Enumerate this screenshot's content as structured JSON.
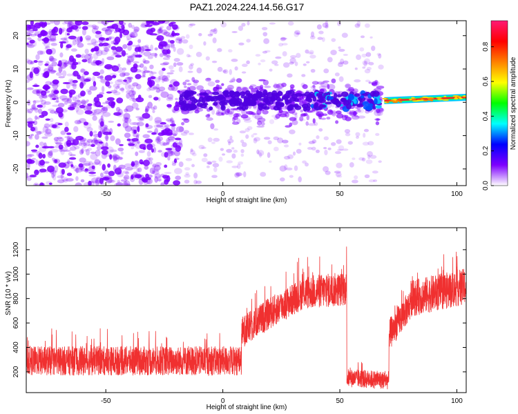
{
  "title": "PAZ1.2024.224.14.56.G17",
  "colors": {
    "snr_line": "#f03030",
    "spectro_base": "#7d00ff",
    "colormap": [
      "#ffffff",
      "#7d00ff",
      "#0000ff",
      "#00ffff",
      "#00ff00",
      "#ffff00",
      "#ff8000",
      "#ff0000",
      "#ff1a75"
    ]
  },
  "chart_data": [
    {
      "type": "heatmap",
      "title": "PAZ1.2024.224.14.56.G17",
      "xlabel": "Height of straight line (km)",
      "ylabel": "Frequency (Hz)",
      "xlim": [
        -84,
        104
      ],
      "ylim": [
        -25,
        24.5
      ],
      "xticks": [
        -50,
        0,
        50,
        100
      ],
      "xtick_labels": [
        "-50",
        "0",
        "50",
        "100"
      ],
      "yticks": [
        -20,
        -10,
        0,
        10,
        20
      ],
      "ytick_labels": [
        "-20",
        "-10",
        "0",
        "10",
        "20"
      ],
      "colorbar": {
        "label": "Normalized spectral amplitude",
        "range": [
          0,
          0.95
        ],
        "ticks": [
          0.0,
          0.2,
          0.4,
          0.6,
          0.8
        ],
        "tick_labels": [
          "0.0",
          "0.2",
          "0.4",
          "0.6",
          "0.8"
        ]
      },
      "features": [
        {
          "name": "scattered noise",
          "x_range": [
            -84,
            -18
          ],
          "freq_range": [
            -25,
            24.5
          ],
          "amplitude": 0.15
        },
        {
          "name": "noise band",
          "x_range": [
            -18,
            68
          ],
          "freq_range": [
            -8,
            8
          ],
          "amplitude": 0.1
        },
        {
          "name": "signal core",
          "x_range": [
            -18,
            68
          ],
          "freq": 0.5,
          "amplitude": 0.25
        },
        {
          "name": "tracking line",
          "x_range": [
            69,
            104
          ],
          "freq_start": 0.5,
          "freq_end": 1.5,
          "amplitude": 0.9
        }
      ]
    },
    {
      "type": "line",
      "xlabel": "Height of straight line (km)",
      "ylabel": "SNR (10 * v/v)",
      "xlim": [
        -84,
        104
      ],
      "ylim": [
        30,
        1380
      ],
      "xticks": [
        -50,
        0,
        50,
        100
      ],
      "xtick_labels": [
        "-50",
        "0",
        "50",
        "100"
      ],
      "yticks": [
        200,
        400,
        600,
        800,
        1000,
        1200
      ],
      "ytick_labels": [
        "200",
        "400",
        "600",
        "800",
        "1000",
        "1200"
      ],
      "segments": [
        {
          "x": [
            -84,
            8
          ],
          "mean": [
            290,
            290
          ],
          "spread": 240
        },
        {
          "x": [
            8,
            20
          ],
          "mean": [
            520,
            680
          ],
          "spread": 260
        },
        {
          "x": [
            20,
            35
          ],
          "mean": [
            680,
            850
          ],
          "spread": 260
        },
        {
          "x": [
            35,
            53
          ],
          "mean": [
            850,
            880
          ],
          "spread": 280
        },
        {
          "x": [
            53,
            71
          ],
          "mean": [
            150,
            130
          ],
          "spread": 150
        },
        {
          "x": [
            71,
            80
          ],
          "mean": [
            500,
            750
          ],
          "spread": 260
        },
        {
          "x": [
            80,
            104
          ],
          "mean": [
            800,
            900
          ],
          "spread": 300
        }
      ]
    }
  ]
}
